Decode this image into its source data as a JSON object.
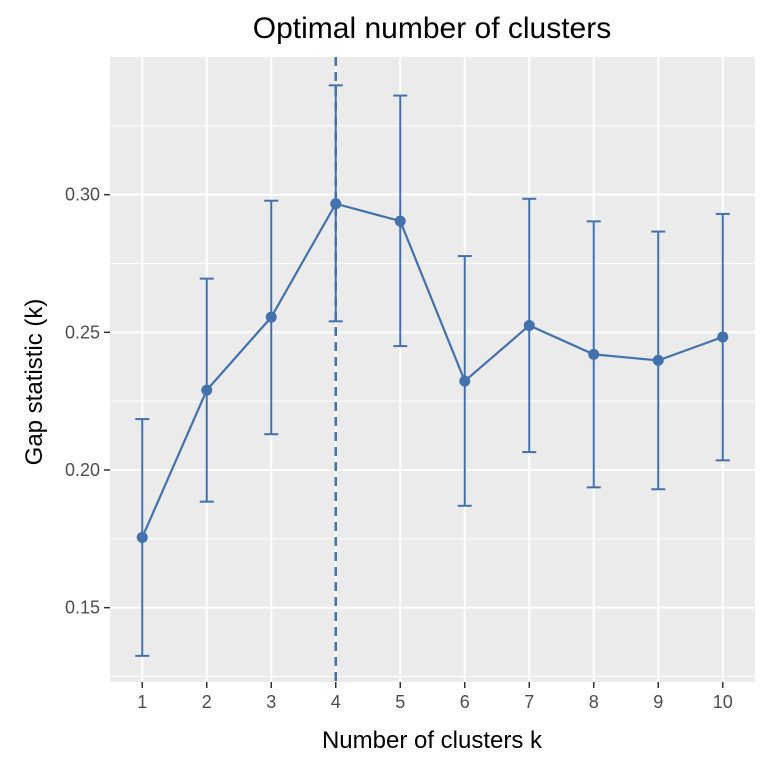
{
  "chart_data": {
    "type": "line",
    "title": "Optimal number of clusters",
    "xlabel": "Number of clusters k",
    "ylabel": "Gap statistic (k)",
    "x": [
      1,
      2,
      3,
      4,
      5,
      6,
      7,
      8,
      9,
      10
    ],
    "xlim": [
      0.5,
      10.5
    ],
    "ylim": [
      0.123,
      0.35
    ],
    "yticks": [
      "0.15",
      "0.20",
      "0.25",
      "0.30"
    ],
    "series": [
      {
        "values": [
          0.1755,
          0.229,
          0.2555,
          0.2967,
          0.2904,
          0.2323,
          0.2525,
          0.242,
          0.2398,
          0.2483
        ],
        "lower": [
          0.1325,
          0.1885,
          0.213,
          0.254,
          0.245,
          0.187,
          0.2065,
          0.1937,
          0.193,
          0.2035
        ],
        "upper": [
          0.2185,
          0.2695,
          0.2978,
          0.3397,
          0.336,
          0.2777,
          0.2985,
          0.2903,
          0.2866,
          0.293
        ]
      }
    ],
    "optimal_k": 4,
    "colors": {
      "series": "#4271ae",
      "panel": "#ebebeb",
      "grid": "#ffffff"
    },
    "grid": true,
    "legend": "none"
  }
}
